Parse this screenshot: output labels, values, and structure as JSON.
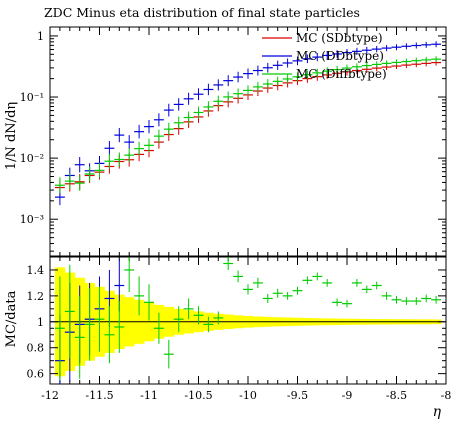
{
  "chart_data": [
    {
      "type": "scatter",
      "title": "ZDC Minus eta distribution of final state particles",
      "xlabel": "",
      "ylabel": "1/N dN/dη",
      "xlim": [
        -12,
        -8
      ],
      "ylim": [
        0.00025,
        1.4
      ],
      "log_y": true,
      "y_tick_labels": [
        "10⁻³",
        "10⁻²",
        "10⁻¹",
        "1"
      ],
      "x": [
        -11.9,
        -11.8,
        -11.7,
        -11.6,
        -11.5,
        -11.4,
        -11.3,
        -11.2,
        -11.1,
        -11.0,
        -10.9,
        -10.8,
        -10.7,
        -10.6,
        -10.5,
        -10.4,
        -10.3,
        -10.2,
        -10.1,
        -10.0,
        -9.9,
        -9.8,
        -9.7,
        -9.6,
        -9.5,
        -9.4,
        -9.3,
        -9.2,
        -9.1,
        -9.0,
        -8.9,
        -8.8,
        -8.7,
        -8.6,
        -8.5,
        -8.4,
        -8.3,
        -8.2,
        -8.1
      ],
      "legend_position": "top-right",
      "series": [
        {
          "name": "MC (SDbtype)",
          "color": "#dd0000",
          "y": [
            0.0033,
            0.0038,
            0.0041,
            0.0052,
            0.0059,
            0.0073,
            0.0088,
            0.0094,
            0.0115,
            0.0133,
            0.0183,
            0.0243,
            0.0304,
            0.0392,
            0.0472,
            0.0592,
            0.0722,
            0.0833,
            0.0953,
            0.1083,
            0.1253,
            0.1403,
            0.1543,
            0.1703,
            0.1853,
            0.2003,
            0.2153,
            0.2303,
            0.2443,
            0.2583,
            0.2713,
            0.2843,
            0.2973,
            0.3093,
            0.3213,
            0.3333,
            0.3443,
            0.3553,
            0.3663
          ]
        },
        {
          "name": "MC (DDbtype)",
          "color": "#0000dd",
          "y": [
            0.0023,
            0.0052,
            0.0078,
            0.0062,
            0.0082,
            0.0145,
            0.0238,
            0.0183,
            0.0271,
            0.0328,
            0.0424,
            0.0611,
            0.0757,
            0.0935,
            0.1112,
            0.1329,
            0.1578,
            0.1853,
            0.2122,
            0.2418,
            0.2714,
            0.3012,
            0.3304,
            0.3606,
            0.3908,
            0.4218,
            0.4508,
            0.4794,
            0.5071,
            0.5332,
            0.5592,
            0.5837,
            0.6083,
            0.6318,
            0.6541,
            0.6768,
            0.6967,
            0.7152,
            0.7311
          ]
        },
        {
          "name": "MC (Diffbtype)",
          "color": "#00cc00",
          "y": [
            0.0036,
            0.0042,
            0.0039,
            0.0055,
            0.0063,
            0.0089,
            0.0095,
            0.0112,
            0.0143,
            0.0162,
            0.0229,
            0.0298,
            0.0379,
            0.0462,
            0.0558,
            0.0688,
            0.0852,
            0.1004,
            0.1134,
            0.1284,
            0.1464,
            0.1634,
            0.1804,
            0.1974,
            0.2144,
            0.2314,
            0.2484,
            0.2654,
            0.2814,
            0.2974,
            0.3124,
            0.3274,
            0.3414,
            0.3554,
            0.3684,
            0.3814,
            0.3934,
            0.4054,
            0.4164
          ]
        }
      ]
    },
    {
      "type": "scatter",
      "title": "",
      "xlabel": "η",
      "ylabel": "MC/data",
      "xlim": [
        -12,
        -8
      ],
      "ylim": [
        0.52,
        1.5
      ],
      "x_ticks": [
        -12,
        -11.5,
        -11,
        -10.5,
        -10,
        -9.5,
        -9,
        -8.5,
        -8
      ],
      "x_tick_labels": [
        "-12",
        "-11.5",
        "-11",
        "-10.5",
        "-10",
        "-9.5",
        "-9",
        "-8.5",
        "-8"
      ],
      "y_ticks": [
        0.6,
        0.8,
        1.0,
        1.2,
        1.4
      ],
      "y_tick_labels": [
        "0.6",
        "0.8",
        "1",
        "1.2",
        "1.4"
      ],
      "band_color": "#ffff00",
      "band": {
        "x": [
          -11.9,
          -11.8,
          -11.7,
          -11.6,
          -11.5,
          -11.4,
          -11.3,
          -11.2,
          -11.1,
          -11.0,
          -10.9,
          -10.8,
          -10.7,
          -10.6,
          -10.5,
          -10.4,
          -10.3,
          -10.2,
          -10.1,
          -10.0,
          -9.9,
          -9.8,
          -9.7,
          -9.6,
          -9.5,
          -9.4,
          -9.3,
          -9.2,
          -9.1,
          -9.0,
          -8.9,
          -8.8,
          -8.7,
          -8.6,
          -8.5,
          -8.4,
          -8.3,
          -8.2,
          -8.1
        ],
        "half_width": [
          0.42,
          0.38,
          0.34,
          0.3,
          0.27,
          0.24,
          0.21,
          0.19,
          0.17,
          0.15,
          0.13,
          0.115,
          0.1,
          0.09,
          0.08,
          0.07,
          0.062,
          0.056,
          0.05,
          0.045,
          0.041,
          0.038,
          0.035,
          0.033,
          0.031,
          0.029,
          0.027,
          0.026,
          0.025,
          0.024,
          0.023,
          0.022,
          0.021,
          0.021,
          0.02,
          0.02,
          0.019,
          0.019,
          0.018
        ]
      },
      "series": [
        {
          "name": "MC (DDbtype)",
          "color": "#0000dd",
          "points": [
            {
              "x": -11.9,
              "y": 0.7,
              "err": 0.35
            },
            {
              "x": -11.8,
              "y": 0.92,
              "err": 0.38
            },
            {
              "x": -11.7,
              "y": 0.98,
              "err": 0.3
            },
            {
              "x": -11.6,
              "y": 1.02,
              "err": 0.28
            },
            {
              "x": -11.5,
              "y": 1.1,
              "err": 0.25
            },
            {
              "x": -11.4,
              "y": 1.18,
              "err": 0.22
            },
            {
              "x": -11.3,
              "y": 1.28,
              "err": 0.2
            }
          ]
        },
        {
          "name": "MC (Diffbtype)",
          "color": "#00cc00",
          "points": [
            {
              "x": -11.9,
              "y": 0.95,
              "err": 0.4
            },
            {
              "x": -11.8,
              "y": 1.08,
              "err": 0.36
            },
            {
              "x": -11.7,
              "y": 0.88,
              "err": 0.32
            },
            {
              "x": -11.6,
              "y": 0.98,
              "err": 0.28
            },
            {
              "x": -11.5,
              "y": 1.02,
              "err": 0.25
            },
            {
              "x": -11.4,
              "y": 0.9,
              "err": 0.22
            },
            {
              "x": -11.3,
              "y": 0.96,
              "err": 0.2
            },
            {
              "x": -11.2,
              "y": 1.4,
              "err": 0.17
            },
            {
              "x": -11.1,
              "y": 1.2,
              "err": 0.15
            },
            {
              "x": -11.0,
              "y": 1.15,
              "err": 0.14
            },
            {
              "x": -10.9,
              "y": 0.95,
              "err": 0.12
            },
            {
              "x": -10.8,
              "y": 0.75,
              "err": 0.11
            },
            {
              "x": -10.7,
              "y": 1.02,
              "err": 0.1
            },
            {
              "x": -10.6,
              "y": 1.1,
              "err": 0.08
            },
            {
              "x": -10.5,
              "y": 1.05,
              "err": 0.07
            },
            {
              "x": -10.4,
              "y": 0.98,
              "err": 0.06
            },
            {
              "x": -10.3,
              "y": 1.03,
              "err": 0.05
            },
            {
              "x": -10.2,
              "y": 1.45,
              "err": 0.05
            },
            {
              "x": -10.1,
              "y": 1.35,
              "err": 0.045
            },
            {
              "x": -10.0,
              "y": 1.25,
              "err": 0.04
            },
            {
              "x": -9.9,
              "y": 1.3,
              "err": 0.04
            },
            {
              "x": -9.8,
              "y": 1.18,
              "err": 0.035
            },
            {
              "x": -9.7,
              "y": 1.22,
              "err": 0.035
            },
            {
              "x": -9.6,
              "y": 1.2,
              "err": 0.03
            },
            {
              "x": -9.5,
              "y": 1.24,
              "err": 0.03
            },
            {
              "x": -9.4,
              "y": 1.32,
              "err": 0.03
            },
            {
              "x": -9.3,
              "y": 1.35,
              "err": 0.03
            },
            {
              "x": -9.2,
              "y": 1.3,
              "err": 0.03
            },
            {
              "x": -9.1,
              "y": 1.15,
              "err": 0.03
            },
            {
              "x": -9.0,
              "y": 1.14,
              "err": 0.03
            },
            {
              "x": -8.9,
              "y": 1.3,
              "err": 0.03
            },
            {
              "x": -8.8,
              "y": 1.25,
              "err": 0.03
            },
            {
              "x": -8.7,
              "y": 1.28,
              "err": 0.03
            },
            {
              "x": -8.6,
              "y": 1.2,
              "err": 0.03
            },
            {
              "x": -8.5,
              "y": 1.17,
              "err": 0.03
            },
            {
              "x": -8.4,
              "y": 1.16,
              "err": 0.03
            },
            {
              "x": -8.3,
              "y": 1.16,
              "err": 0.03
            },
            {
              "x": -8.2,
              "y": 1.18,
              "err": 0.03
            },
            {
              "x": -8.1,
              "y": 1.17,
              "err": 0.03
            }
          ]
        }
      ]
    }
  ]
}
